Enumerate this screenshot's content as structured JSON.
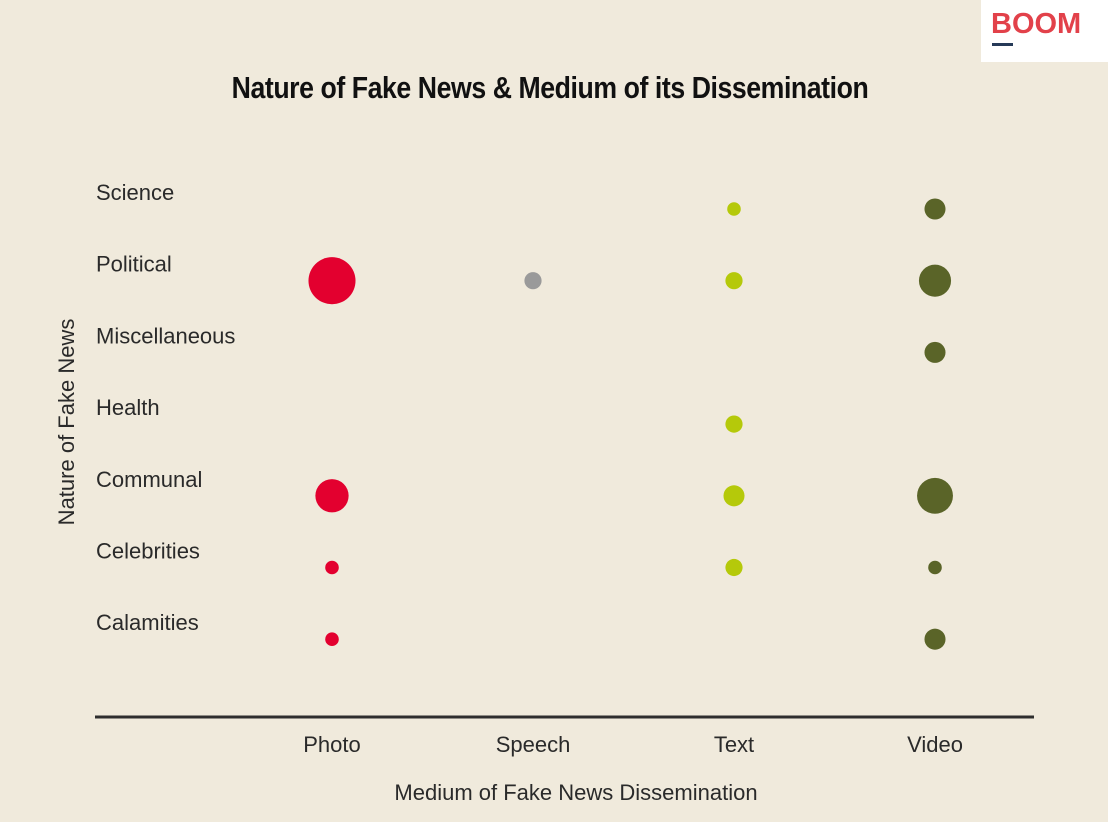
{
  "brand": {
    "logo_text": "BOOM"
  },
  "chart_data": {
    "type": "scatter",
    "title": "Nature of Fake News & Medium of its Dissemination",
    "xlabel": "Medium of Fake News Dissemination",
    "ylabel": "Nature of Fake News",
    "x_categories": [
      "Photo",
      "Speech",
      "Text",
      "Video"
    ],
    "y_categories": [
      "Science",
      "Political",
      "Miscellaneous",
      "Health",
      "Communal",
      "Celebrities",
      "Calamities"
    ],
    "colors": {
      "Photo": "#e3002f",
      "Speech": "#9a9a9a",
      "Text": "#b5c90a",
      "Video": "#5a6428"
    },
    "points": [
      {
        "x": "Photo",
        "y": "Political",
        "size": 6
      },
      {
        "x": "Photo",
        "y": "Communal",
        "size": 3
      },
      {
        "x": "Photo",
        "y": "Celebrities",
        "size": 0.5
      },
      {
        "x": "Photo",
        "y": "Calamities",
        "size": 0.5
      },
      {
        "x": "Speech",
        "y": "Political",
        "size": 0.8
      },
      {
        "x": "Text",
        "y": "Science",
        "size": 0.5
      },
      {
        "x": "Text",
        "y": "Political",
        "size": 0.8
      },
      {
        "x": "Text",
        "y": "Health",
        "size": 0.8
      },
      {
        "x": "Text",
        "y": "Communal",
        "size": 1.2
      },
      {
        "x": "Text",
        "y": "Celebrities",
        "size": 0.8
      },
      {
        "x": "Video",
        "y": "Science",
        "size": 1.2
      },
      {
        "x": "Video",
        "y": "Political",
        "size": 2.8
      },
      {
        "x": "Video",
        "y": "Miscellaneous",
        "size": 1.2
      },
      {
        "x": "Video",
        "y": "Communal",
        "size": 3.5
      },
      {
        "x": "Video",
        "y": "Celebrities",
        "size": 0.5
      },
      {
        "x": "Video",
        "y": "Calamities",
        "size": 1.2
      }
    ]
  }
}
